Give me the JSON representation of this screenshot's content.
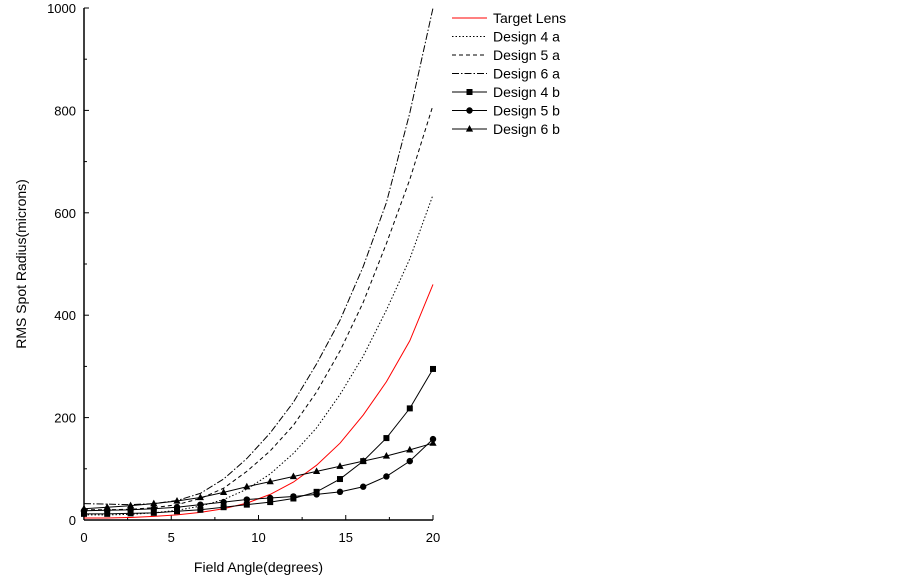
{
  "chart_data": {
    "type": "line",
    "title": "",
    "xlabel": "Field Angle(degrees)",
    "ylabel": "RMS Spot Radius(microns)",
    "xlim": [
      0,
      20
    ],
    "ylim": [
      0,
      1000
    ],
    "xticks": [
      0,
      5,
      10,
      15,
      20
    ],
    "yticks": [
      0,
      200,
      400,
      600,
      800,
      1000
    ],
    "grid": false,
    "legend_position": "top-right",
    "x": [
      0,
      1.33,
      2.67,
      4,
      5.33,
      6.67,
      8,
      9.33,
      10.67,
      12,
      13.33,
      14.67,
      16,
      17.33,
      18.67,
      20
    ],
    "series": [
      {
        "name": "Target Lens",
        "color": "#ff0000",
        "style": "solid",
        "marker": "none",
        "values": [
          4,
          4,
          5,
          7,
          10,
          15,
          22,
          33,
          50,
          74,
          107,
          150,
          205,
          270,
          350,
          460
        ]
      },
      {
        "name": "Design 4 a",
        "color": "#000000",
        "style": "dotted",
        "marker": "none",
        "values": [
          10,
          10,
          11,
          14,
          19,
          27,
          40,
          60,
          90,
          130,
          180,
          245,
          320,
          410,
          510,
          635
        ]
      },
      {
        "name": "Design 5 a",
        "color": "#000000",
        "style": "dashed",
        "marker": "none",
        "values": [
          20,
          20,
          21,
          24,
          30,
          42,
          62,
          95,
          135,
          185,
          250,
          330,
          425,
          540,
          665,
          810
        ]
      },
      {
        "name": "Design 6 a",
        "color": "#000000",
        "style": "dashdot",
        "marker": "none",
        "values": [
          32,
          31,
          30,
          32,
          38,
          52,
          80,
          120,
          170,
          230,
          305,
          390,
          495,
          620,
          795,
          1000
        ]
      },
      {
        "name": "Design 4 b",
        "color": "#000000",
        "style": "solid",
        "marker": "square",
        "values": [
          12,
          12,
          13,
          14,
          17,
          20,
          25,
          30,
          35,
          42,
          55,
          80,
          115,
          160,
          218,
          295
        ]
      },
      {
        "name": "Design 5 b",
        "color": "#000000",
        "style": "solid",
        "marker": "circle",
        "values": [
          18,
          19,
          20,
          22,
          25,
          30,
          35,
          40,
          43,
          46,
          50,
          55,
          65,
          85,
          115,
          158
        ]
      },
      {
        "name": "Design 6 b",
        "color": "#000000",
        "style": "solid",
        "marker": "triangle",
        "values": [
          22,
          25,
          28,
          32,
          37,
          44,
          54,
          65,
          75,
          85,
          95,
          105,
          115,
          125,
          137,
          150
        ]
      }
    ]
  }
}
